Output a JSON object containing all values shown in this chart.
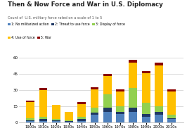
{
  "title": "Then & Now Force and War in U.S. Diplomacy",
  "subtitle": "Count of  U.S. military force rated on a scale of 1 to 5",
  "categories": [
    "1900s",
    "1910s",
    "1920s",
    "1930s",
    "1940s",
    "1950s",
    "1960s",
    "1970s",
    "1980s",
    "1990s",
    "2000s",
    "2010s"
  ],
  "series": {
    "1: No militarized action": [
      1,
      1,
      1,
      0.5,
      1,
      7,
      10,
      8,
      10,
      5,
      7,
      3
    ],
    "2: Threat to use force": [
      1,
      2,
      1,
      0.5,
      2,
      2,
      4,
      2,
      4,
      3,
      3,
      1
    ],
    "3: Display of force": [
      2,
      2,
      1,
      1,
      2,
      5,
      12,
      5,
      18,
      10,
      5,
      3
    ],
    "4: Use of force": [
      15,
      25,
      13,
      8,
      12,
      17,
      17,
      14,
      24,
      28,
      38,
      22
    ],
    "5: War": [
      1,
      2,
      0,
      0,
      2,
      2,
      2,
      2,
      2,
      2,
      3,
      2
    ]
  },
  "colors": {
    "1: No militarized action": "#4f81bd",
    "2: Threat to use force": "#1f3864",
    "3: Display of force": "#92d050",
    "4: Use of force": "#ffc000",
    "5: War": "#8b0000"
  },
  "ylim": [
    0,
    62
  ],
  "yticks": [
    0,
    15,
    30,
    45,
    60
  ],
  "background_color": "#ffffff",
  "grid_color": "#cccccc",
  "row1_labels": [
    "1: No militarized action",
    "2: Threat to use force",
    "3: Display of force"
  ],
  "row2_labels": [
    "4: Use of force",
    "5: War"
  ]
}
